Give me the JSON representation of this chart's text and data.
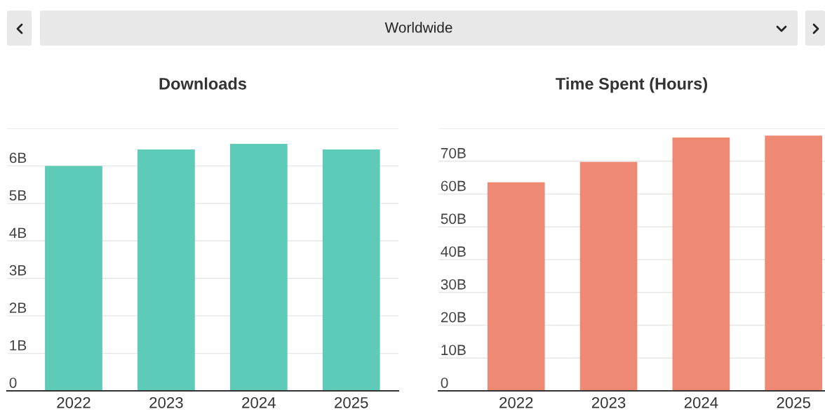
{
  "chart_data": [
    {
      "type": "bar",
      "title": "Downloads",
      "annotations": [
        "Worldwide"
      ],
      "categories": [
        "2022",
        "2023",
        "2024",
        "2025"
      ],
      "values": [
        6.0,
        6.44,
        6.59,
        6.44
      ],
      "color": "#5ecbb8",
      "ylim": [
        0,
        7
      ],
      "yticks": [
        {
          "value": 0,
          "label": "0"
        },
        {
          "value": 1,
          "label": "1B"
        },
        {
          "value": 2,
          "label": "2B"
        },
        {
          "value": 3,
          "label": "3B"
        },
        {
          "value": 4,
          "label": "4B"
        },
        {
          "value": 5,
          "label": "5B"
        },
        {
          "value": 6,
          "label": "6B"
        },
        {
          "value": 7,
          "label": null
        }
      ],
      "grid": "y"
    },
    {
      "type": "bar",
      "title": "Time Spent (Hours)",
      "categories": [
        "2022",
        "2023",
        "2024",
        "2025"
      ],
      "values": [
        63.6,
        69.8,
        77.2,
        77.8
      ],
      "color": "#ee8a74",
      "ylim": [
        0,
        80
      ],
      "yticks": [
        {
          "value": 0,
          "label": "0"
        },
        {
          "value": 10,
          "label": "10B"
        },
        {
          "value": 20,
          "label": "20B"
        },
        {
          "value": 30,
          "label": "30B"
        },
        {
          "value": 40,
          "label": "40B"
        },
        {
          "value": 50,
          "label": "50B"
        },
        {
          "value": 60,
          "label": "60B"
        },
        {
          "value": 70,
          "label": "70B"
        },
        {
          "value": 80,
          "label": null
        }
      ],
      "grid": "y"
    }
  ]
}
